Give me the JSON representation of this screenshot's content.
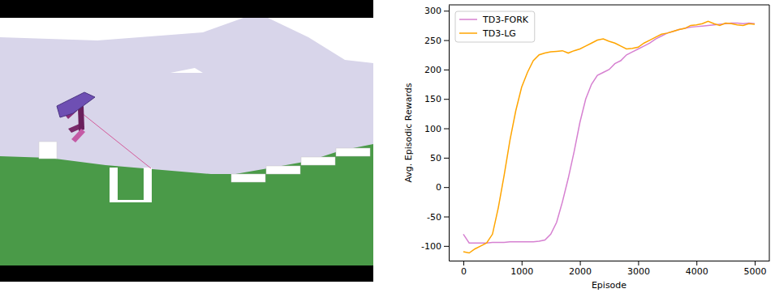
{
  "chart_data": {
    "type": "line",
    "xlabel": "Episode",
    "ylabel": "Avg. Episodic Rewards",
    "x": [
      0,
      100,
      200,
      300,
      400,
      500,
      600,
      700,
      800,
      900,
      1000,
      1100,
      1200,
      1300,
      1400,
      1500,
      1600,
      1700,
      1800,
      1900,
      2000,
      2100,
      2200,
      2300,
      2400,
      2500,
      2600,
      2700,
      2800,
      2900,
      3000,
      3100,
      3200,
      3300,
      3400,
      3500,
      3600,
      3700,
      3800,
      3900,
      4000,
      4100,
      4200,
      4300,
      4400,
      4500,
      4600,
      4700,
      4800,
      4900,
      5000
    ],
    "series": [
      {
        "name": "TD3-FORK",
        "color": "#d681d1",
        "values": [
          -80,
          -95,
          -95,
          -95,
          -95,
          -94,
          -94,
          -94,
          -93,
          -93,
          -93,
          -93,
          -93,
          -92,
          -90,
          -80,
          -60,
          -25,
          15,
          60,
          110,
          150,
          175,
          190,
          195,
          200,
          210,
          215,
          225,
          230,
          235,
          240,
          245,
          252,
          257,
          262,
          265,
          268,
          270,
          272,
          273,
          274,
          275,
          276,
          277,
          278,
          279,
          279,
          278,
          279,
          278
        ]
      },
      {
        "name": "TD3-LG",
        "color": "#ffa500",
        "values": [
          -110,
          -112,
          -105,
          -100,
          -95,
          -80,
          -35,
          20,
          80,
          130,
          170,
          195,
          215,
          225,
          228,
          230,
          231,
          232,
          228,
          232,
          235,
          240,
          245,
          250,
          252,
          248,
          245,
          240,
          235,
          236,
          238,
          245,
          250,
          255,
          260,
          262,
          265,
          268,
          270,
          275,
          276,
          278,
          282,
          278,
          275,
          279,
          278,
          276,
          275,
          278,
          277
        ]
      }
    ],
    "xlim": [
      -250,
      5250
    ],
    "ylim": [
      -125,
      310
    ],
    "xticks": [
      0,
      1000,
      2000,
      3000,
      4000,
      5000
    ],
    "yticks": [
      -100,
      -50,
      0,
      50,
      100,
      150,
      200,
      250,
      300
    ],
    "legend": "upper left",
    "grid": false
  }
}
